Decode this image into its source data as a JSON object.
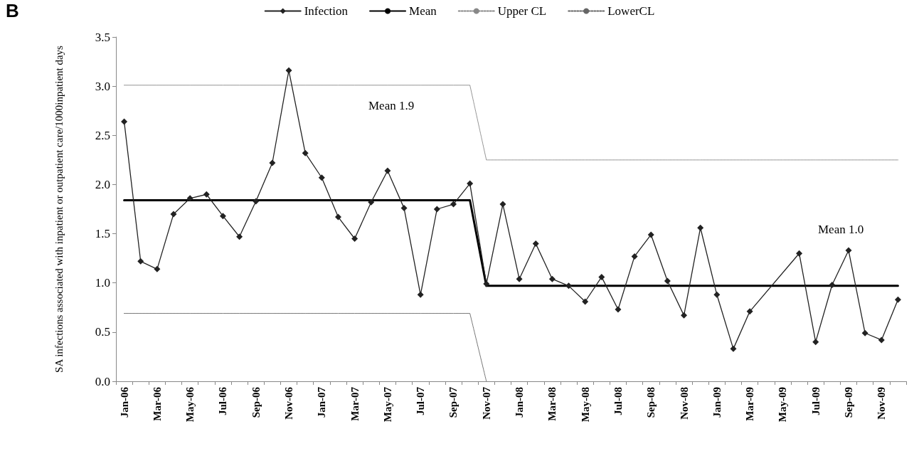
{
  "chart_data": {
    "type": "line",
    "ylabel": "SA infections associated with inpatient or outpatient care/1000inpatient days",
    "annotations": [
      "B",
      "Mean 1.9",
      "Mean 1.0"
    ],
    "categories": [
      "Jan-06",
      null,
      "Mar-06",
      null,
      "May-06",
      null,
      "Jul-06",
      null,
      "Sep-06",
      null,
      "Nov-06",
      null,
      "Jan-07",
      null,
      "Mar-07",
      null,
      "May-07",
      null,
      "Jul-07",
      null,
      "Sep-07",
      null,
      "Nov-07",
      null,
      "Jan-08",
      null,
      "Mar-08",
      null,
      "May-08",
      null,
      "Jul-08",
      null,
      "Sep-08",
      null,
      "Nov-08",
      null,
      "Jan-09",
      null,
      "Mar-09",
      null,
      "May-09",
      null,
      "Jul-09",
      null,
      "Sep-09",
      null,
      "Nov-09",
      null
    ],
    "series": [
      {
        "name": "Infection",
        "color": "#222222",
        "marker": "diamond",
        "line_style": "solid",
        "values": [
          2.64,
          1.22,
          1.14,
          1.7,
          1.86,
          1.9,
          1.68,
          1.47,
          1.83,
          2.22,
          3.16,
          2.32,
          2.07,
          1.67,
          1.45,
          1.82,
          2.14,
          1.76,
          0.88,
          1.75,
          1.8,
          2.01,
          0.99,
          1.8,
          1.04,
          1.4,
          1.04,
          0.97,
          0.81,
          1.06,
          0.73,
          1.27,
          1.49,
          1.02,
          0.67,
          1.56,
          0.88,
          0.33,
          0.71,
          null,
          null,
          1.3,
          0.4,
          0.98,
          1.33,
          0.49,
          0.42,
          0.83
        ]
      },
      {
        "name": "Mean",
        "color": "#000000",
        "marker": "none",
        "line_style": "solid",
        "values": [
          1.84,
          1.84,
          1.84,
          1.84,
          1.84,
          1.84,
          1.84,
          1.84,
          1.84,
          1.84,
          1.84,
          1.84,
          1.84,
          1.84,
          1.84,
          1.84,
          1.84,
          1.84,
          1.84,
          1.84,
          1.84,
          1.84,
          0.97,
          0.97,
          0.97,
          0.97,
          0.97,
          0.97,
          0.97,
          0.97,
          0.97,
          0.97,
          0.97,
          0.97,
          0.97,
          0.97,
          0.97,
          0.97,
          0.97,
          0.97,
          0.97,
          0.97,
          0.97,
          0.97,
          0.97,
          0.97,
          0.97,
          0.97
        ]
      },
      {
        "name": "Upper CL",
        "color": "#888888",
        "marker": "none",
        "line_style": "dotted",
        "values": [
          3.01,
          3.01,
          3.01,
          3.01,
          3.01,
          3.01,
          3.01,
          3.01,
          3.01,
          3.01,
          3.01,
          3.01,
          3.01,
          3.01,
          3.01,
          3.01,
          3.01,
          3.01,
          3.01,
          3.01,
          3.01,
          3.01,
          2.25,
          2.25,
          2.25,
          2.25,
          2.25,
          2.25,
          2.25,
          2.25,
          2.25,
          2.25,
          2.25,
          2.25,
          2.25,
          2.25,
          2.25,
          2.25,
          2.25,
          2.25,
          2.25,
          2.25,
          2.25,
          2.25,
          2.25,
          2.25,
          2.25,
          2.25
        ]
      },
      {
        "name": "LowerCL",
        "color": "#666666",
        "marker": "none",
        "line_style": "dotted",
        "values": [
          0.69,
          0.69,
          0.69,
          0.69,
          0.69,
          0.69,
          0.69,
          0.69,
          0.69,
          0.69,
          0.69,
          0.69,
          0.69,
          0.69,
          0.69,
          0.69,
          0.69,
          0.69,
          0.69,
          0.69,
          0.69,
          0.69,
          0,
          null,
          null,
          null,
          null,
          null,
          null,
          null,
          null,
          null,
          null,
          null,
          null,
          null,
          null,
          null,
          null,
          null,
          null,
          null,
          null,
          null,
          null,
          null,
          null,
          null
        ]
      }
    ],
    "ylim": [
      0,
      3.5
    ],
    "yticks": [
      {
        "value": 0,
        "label": "0.0"
      },
      {
        "value": 0.5,
        "label": "0.5"
      },
      {
        "value": 1,
        "label": "1.0"
      },
      {
        "value": 1.5,
        "label": "1.5"
      },
      {
        "value": 2,
        "label": "2.0"
      },
      {
        "value": 2.5,
        "label": "2.5"
      },
      {
        "value": 3,
        "label": "3.0"
      },
      {
        "value": 3.5,
        "label": "3.5"
      }
    ],
    "grid": false,
    "legend": "top"
  }
}
